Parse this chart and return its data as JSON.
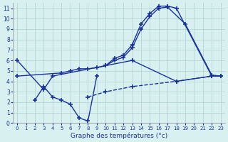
{
  "title": "Graphe des températures (°c)",
  "line1_x": [
    0,
    3,
    4,
    10,
    11,
    12,
    13,
    14,
    15,
    16,
    17,
    18,
    22,
    23
  ],
  "line1_y": [
    6.0,
    3.2,
    4.5,
    5.5,
    6.2,
    6.5,
    7.5,
    9.5,
    10.5,
    11.2,
    11.2,
    11.0,
    4.5,
    4.5
  ],
  "line2_x": [
    10,
    11,
    12,
    13,
    14,
    15,
    16,
    17,
    19,
    22,
    23
  ],
  "line2_y": [
    5.5,
    6.0,
    6.3,
    7.2,
    9.0,
    10.2,
    11.0,
    11.1,
    9.5,
    4.6,
    4.5
  ],
  "line3_x": [
    0,
    5,
    6,
    7,
    8,
    9,
    10,
    13,
    18,
    22,
    23
  ],
  "line3_y": [
    4.5,
    4.8,
    5.0,
    5.2,
    5.2,
    5.3,
    5.5,
    6.0,
    4.0,
    4.5,
    4.5
  ],
  "line4_x": [
    2,
    3,
    4,
    5,
    6,
    7,
    8,
    9
  ],
  "line4_y": [
    2.2,
    3.5,
    2.5,
    2.2,
    1.8,
    0.5,
    0.2,
    4.5
  ],
  "dashed_x": [
    8,
    10,
    13,
    18,
    22
  ],
  "dashed_y": [
    2.5,
    3.0,
    3.5,
    4.0,
    4.5
  ],
  "ylim": [
    0,
    11.5
  ],
  "xlim": [
    -0.5,
    23.5
  ],
  "bg_color": "#d8f0f0",
  "line_color": "#1a3399",
  "grid_color": "#b0d0d0"
}
